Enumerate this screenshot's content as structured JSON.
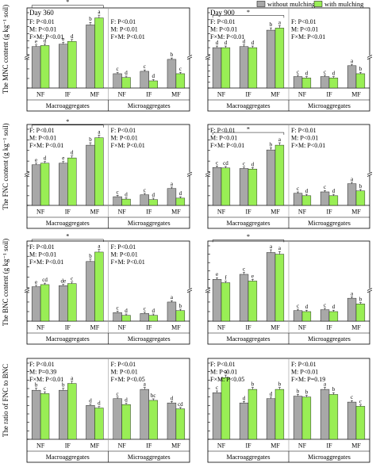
{
  "legend": {
    "series": [
      {
        "name": "without mulching",
        "color": "#a8a8a8"
      },
      {
        "name": "with mulching",
        "color": "#99ee55"
      }
    ]
  },
  "ylabels": [
    "The MNC content (g kg⁻¹ soil)",
    "The FNC content (g kg⁻¹ soil)",
    "The BNC content (g kg⁻¹ soil)",
    "The ratio of FNC to BNC"
  ],
  "columns": [
    "Day 360",
    "Day 900"
  ],
  "groups": [
    "Macroaggregates",
    "Microaggregates"
  ],
  "categories": [
    "NF",
    "IF",
    "MF"
  ],
  "chart_data": [
    {
      "type": "bar",
      "id": "mnc360",
      "row": 0,
      "col": 0,
      "title": "Day 360",
      "ylabel": "The MNC content (g kg⁻¹ soil)",
      "ylim": [
        0,
        14
      ],
      "break": [
        0.6,
        2
      ],
      "yticks": [
        0,
        0.2,
        0.4,
        0.6,
        2,
        4,
        6,
        8,
        10,
        12,
        14
      ],
      "macro": {
        "without": [
          4.3,
          5.0,
          10.5
        ],
        "with": [
          4.6,
          5.8,
          12.5
        ],
        "letters_without": [
          "e",
          "e",
          "b"
        ],
        "letters_with": [
          "d",
          "d",
          "a"
        ]
      },
      "micro": {
        "without": [
          0.3,
          0.35,
          0.6
        ],
        "with": [
          0.22,
          0.15,
          0.3
        ],
        "letters_without": [
          "c",
          "c",
          "b"
        ],
        "letters_with": [
          "d",
          "d",
          "c"
        ]
      },
      "stats_macro": [
        "F: P<0.01",
        "M: P<0.01",
        "F×M: P<0.01"
      ],
      "stats_micro": [
        "F: P<0.01",
        "M: P<0.01",
        "F×M: P<0.01"
      ],
      "star_macro": "*"
    },
    {
      "type": "bar",
      "id": "mnc900",
      "row": 0,
      "col": 1,
      "title": "Day 900",
      "ylabel": "",
      "ylim": [
        0,
        14
      ],
      "break": [
        1.0,
        2
      ],
      "yticks": [
        0,
        0.2,
        0.4,
        0.6,
        0.8,
        1.0,
        2,
        4,
        6,
        8,
        10,
        12,
        14
      ],
      "macro": {
        "without": [
          4.0,
          4.3,
          9.0
        ],
        "with": [
          4.0,
          4.0,
          9.6
        ],
        "letters_without": [
          "d",
          "d",
          "b"
        ],
        "letters_with": [
          "d",
          "d",
          "a"
        ]
      },
      "micro": {
        "without": [
          0.4,
          0.4,
          0.78
        ],
        "with": [
          0.35,
          0.35,
          0.5
        ],
        "letters_without": [
          "c",
          "c",
          "a"
        ],
        "letters_with": [
          "d",
          "d",
          "b"
        ]
      },
      "stats_macro": [
        "F: P<0.01",
        "M: P<0.01",
        "F×M: P<0.01"
      ],
      "stats_micro": [
        "F: P<0.01",
        "M: P<0.01",
        "F×M: P<0.01"
      ],
      "star_macro": "*"
    },
    {
      "type": "bar",
      "id": "fnc360",
      "row": 1,
      "col": 0,
      "title": "",
      "ylabel": "The FNC content (g kg⁻¹ soil)",
      "ylim": [
        0,
        10
      ],
      "break": [
        0.6,
        2
      ],
      "yticks": [
        0,
        0.2,
        0.4,
        0.6,
        2,
        4,
        6,
        8,
        10
      ],
      "macro": {
        "without": [
          3.3,
          3.6,
          7.0
        ],
        "with": [
          3.6,
          4.6,
          8.4
        ],
        "letters_without": [
          "e",
          "e",
          "b"
        ],
        "letters_with": [
          "d",
          "d",
          "a"
        ]
      },
      "micro": {
        "without": [
          0.18,
          0.22,
          0.35
        ],
        "with": [
          0.13,
          0.12,
          0.15
        ],
        "letters_without": [
          "c",
          "c",
          "a"
        ],
        "letters_with": [
          "d",
          "d",
          "d"
        ]
      },
      "stats_macro": [
        "F: P<0.01",
        "M: P<0.01",
        "F×M: P<0.01"
      ],
      "stats_micro": [
        "F: P<0.01",
        "M: P<0.01",
        "F×M: P<0.01"
      ],
      "star_macro": "*"
    },
    {
      "type": "bar",
      "id": "fnc900",
      "row": 1,
      "col": 1,
      "title": "",
      "ylabel": "",
      "ylim": [
        0,
        10
      ],
      "break": [
        0.6,
        2
      ],
      "yticks": [
        0,
        0.2,
        0.4,
        0.6,
        2,
        4,
        6,
        8,
        10
      ],
      "macro": {
        "without": [
          2.8,
          2.6,
          6.1
        ],
        "with": [
          2.7,
          2.5,
          7.0
        ],
        "letters_without": [
          "c",
          "c",
          "b"
        ],
        "letters_with": [
          "cd",
          "d",
          "a"
        ]
      },
      "micro": {
        "without": [
          0.25,
          0.28,
          0.45
        ],
        "with": [
          0.2,
          0.2,
          0.3
        ],
        "letters_without": [
          "c",
          "c",
          "a"
        ],
        "letters_with": [
          "d",
          "d",
          "b"
        ]
      },
      "stats_macro": [
        "F: P<0.01",
        "M: P<0.01",
        "F×M: P<0.01"
      ],
      "stats_micro": [
        "F: P<0.01",
        "M: P<0.01",
        "F×M: P<0.01"
      ],
      "star_macro": "*"
    },
    {
      "type": "bar",
      "id": "bnc360",
      "row": 2,
      "col": 0,
      "title": "",
      "ylabel": "The BNC content (g kg⁻¹ soil)",
      "ylim": [
        0,
        5
      ],
      "break": [
        0.3,
        1
      ],
      "yticks": [
        0,
        0.1,
        0.2,
        0.3,
        1,
        2,
        3,
        4,
        5
      ],
      "macro": {
        "without": [
          1.1,
          1.2,
          3.5
        ],
        "with": [
          1.3,
          1.4,
          4.4
        ],
        "letters_without": [
          "e",
          "de",
          "b"
        ],
        "letters_with": [
          "cd",
          "c",
          "a"
        ]
      },
      "micro": {
        "without": [
          0.09,
          0.08,
          0.2
        ],
        "with": [
          0.06,
          0.06,
          0.11
        ],
        "letters_without": [
          "c",
          "c",
          "a"
        ],
        "letters_with": [
          "d",
          "d",
          "b"
        ]
      },
      "stats_macro": [
        "F: P<0.01",
        "M: P<0.01",
        "F×M: P<0.01"
      ],
      "stats_micro": [
        "F: P<0.01",
        "M: P<0.01",
        "F×M: P<0.01"
      ],
      "star_macro": "*"
    },
    {
      "type": "bar",
      "id": "bnc900",
      "row": 2,
      "col": 1,
      "title": "",
      "ylabel": "",
      "ylim": [
        0,
        3
      ],
      "break": [
        0.3,
        0.5
      ],
      "yticks": [
        0,
        0.1,
        0.2,
        0.3,
        0.5,
        1.0,
        1.5,
        2.0,
        2.5,
        3.0
      ],
      "macro": {
        "without": [
          1.0,
          1.3,
          2.6
        ],
        "with": [
          0.8,
          0.9,
          2.5
        ],
        "letters_without": [
          "e",
          "c",
          "a"
        ],
        "letters_with": [
          "f",
          "e",
          "a"
        ]
      },
      "micro": {
        "without": [
          0.11,
          0.12,
          0.24
        ],
        "with": [
          0.1,
          0.1,
          0.18
        ],
        "letters_without": [
          "c",
          "c",
          "a"
        ],
        "letters_with": [
          "d",
          "d",
          "b"
        ]
      },
      "stats_macro": [],
      "stats_micro": [],
      "star_macro": "*"
    },
    {
      "type": "bar",
      "id": "ratio360",
      "row": 3,
      "col": 0,
      "title": "",
      "ylabel": "The ratio of FNC to BNC",
      "ylim": [
        0,
        4.5
      ],
      "break": null,
      "yticks": [
        0,
        0.5,
        1.0,
        1.5,
        2.0,
        2.5,
        3.0,
        3.5,
        4.0,
        4.5
      ],
      "macro": {
        "without": [
          2.9,
          2.9,
          2.0
        ],
        "with": [
          2.7,
          3.3,
          1.85
        ],
        "letters_without": [
          "b",
          "b",
          "d"
        ],
        "letters_with": [
          "c",
          "a",
          "d"
        ]
      },
      "micro": {
        "without": [
          2.4,
          2.95,
          2.15
        ],
        "with": [
          2.05,
          2.3,
          1.8
        ],
        "letters_without": [
          "c",
          "a",
          "d"
        ],
        "letters_with": [
          "d",
          "bc",
          "cd"
        ]
      },
      "stats_macro": [
        "F: P<0.01",
        "M: P=0.39",
        "F×M: P<0.01"
      ],
      "stats_micro": [
        "F: P<0.01",
        "M: P<0.01",
        "F×M: P<0.05"
      ],
      "star_macro": ""
    },
    {
      "type": "bar",
      "id": "ratio900",
      "row": 3,
      "col": 1,
      "title": "",
      "ylabel": "",
      "ylim": [
        0,
        4.5
      ],
      "break": null,
      "yticks": [
        0,
        0.5,
        1.0,
        1.5,
        2.0,
        2.5,
        3.0,
        3.5,
        4.0,
        4.5
      ],
      "macro": {
        "without": [
          2.75,
          2.15,
          2.4
        ],
        "with": [
          3.65,
          2.95,
          2.95
        ],
        "letters_without": [
          "c",
          "d",
          "d"
        ],
        "letters_with": [
          "a",
          "b",
          "b"
        ]
      },
      "micro": {
        "without": [
          2.55,
          2.95,
          2.2
        ],
        "with": [
          2.5,
          2.65,
          1.95
        ],
        "letters_without": [
          "b",
          "a",
          "c"
        ],
        "letters_with": [
          "b",
          "b",
          "c"
        ]
      },
      "stats_macro": [
        "F: P<0.01",
        "M: P<0.01",
        "F×M: P<0.05"
      ],
      "stats_micro": [
        "F: P<0.01",
        "M: P<0.01",
        "F×M: P=0.19"
      ],
      "star_macro": ""
    }
  ]
}
